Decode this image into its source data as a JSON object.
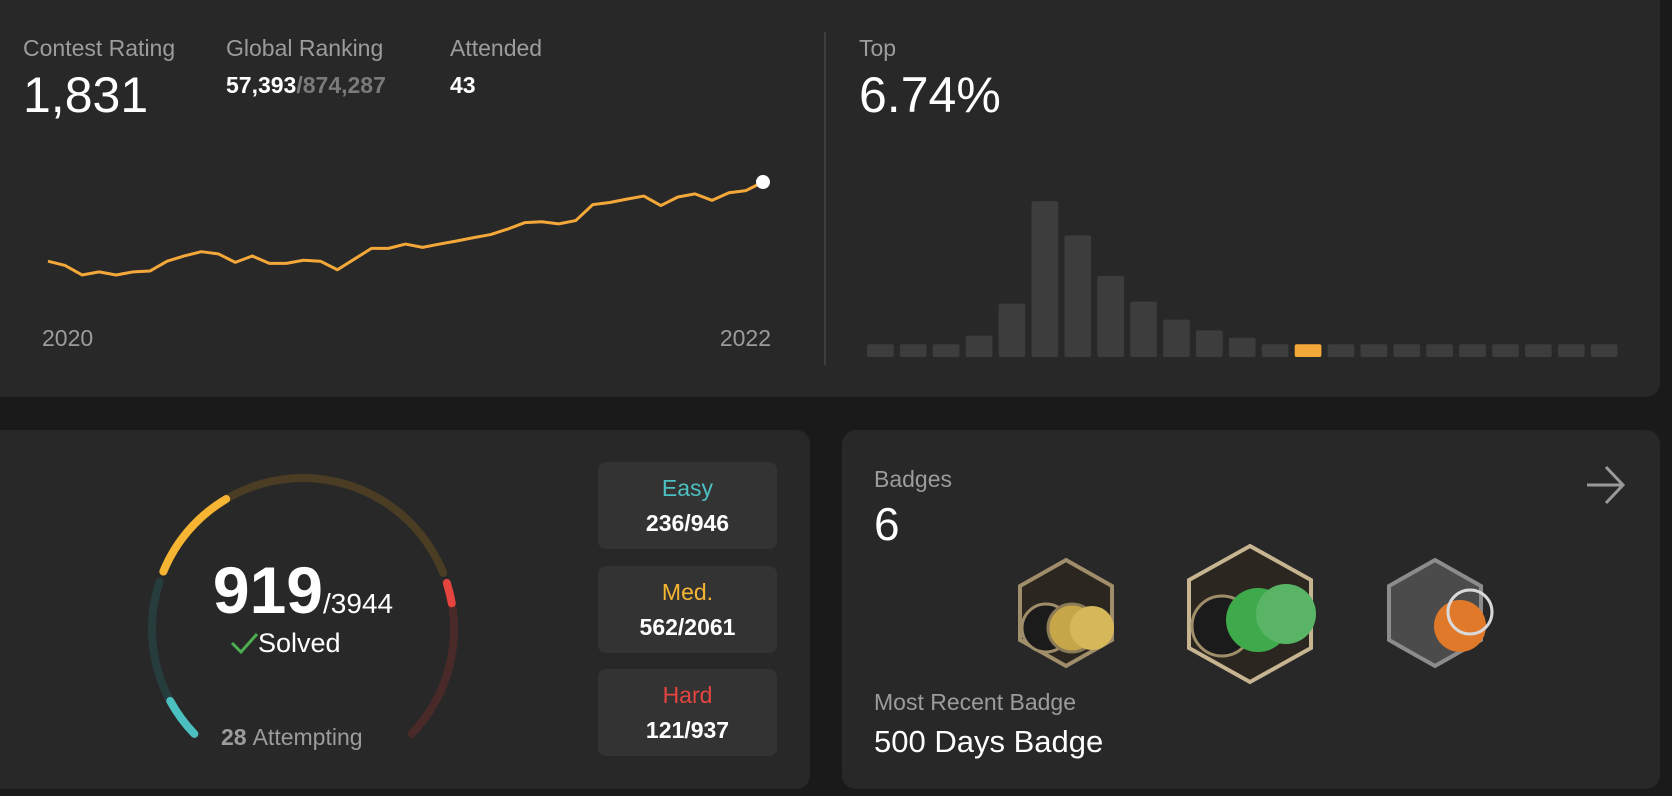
{
  "contest": {
    "rating_label": "Contest Rating",
    "rating": "1,831",
    "ranking_label": "Global Ranking",
    "ranking": "57,393",
    "ranking_total": "/874,287",
    "attended_label": "Attended",
    "attended": "43",
    "rating_chart": {
      "type": "line",
      "color": "#f5a83a",
      "x_labels": [
        "2020",
        "2022"
      ],
      "ylim": [
        1400,
        1850
      ],
      "values": [
        1498,
        1480,
        1440,
        1453,
        1440,
        1453,
        1457,
        1498,
        1520,
        1538,
        1529,
        1493,
        1520,
        1489,
        1489,
        1502,
        1498,
        1462,
        1507,
        1552,
        1552,
        1570,
        1556,
        1570,
        1583,
        1597,
        1610,
        1633,
        1660,
        1664,
        1655,
        1669,
        1736,
        1745,
        1759,
        1772,
        1732,
        1768,
        1781,
        1754,
        1786,
        1795,
        1831
      ]
    }
  },
  "top": {
    "label": "Top",
    "value": "6.74%",
    "chart": {
      "type": "bar",
      "color": "#3d3d3d",
      "highlight_color": "#f5a83a",
      "highlight_index": 13,
      "ylim": [
        0,
        150
      ],
      "values": [
        12,
        12,
        12,
        20,
        50,
        146,
        114,
        76,
        52,
        35,
        25,
        18,
        12,
        12,
        12,
        12,
        12,
        12,
        12,
        12,
        12,
        12,
        12
      ]
    }
  },
  "problems": {
    "type": "gauge",
    "solved": 919,
    "separator": "/",
    "total": 3944,
    "solved_label": "Solved",
    "attempting": 28,
    "attempting_label": "Attempting",
    "easy": {
      "label": "Easy",
      "solved": 236,
      "total": 946,
      "color": "#4cbfc0",
      "track_color": "#263c3d"
    },
    "medium": {
      "label": "Med.",
      "solved": 562,
      "total": 2061,
      "color": "#f5b532",
      "track_color": "#4a3d24"
    },
    "hard": {
      "label": "Hard",
      "solved": 121,
      "total": 937,
      "color": "#e5443f",
      "track_color": "#4a2a29"
    }
  },
  "badges": {
    "label": "Badges",
    "count": "6",
    "recent_label": "Most Recent Badge",
    "recent": "500 Days Badge"
  }
}
